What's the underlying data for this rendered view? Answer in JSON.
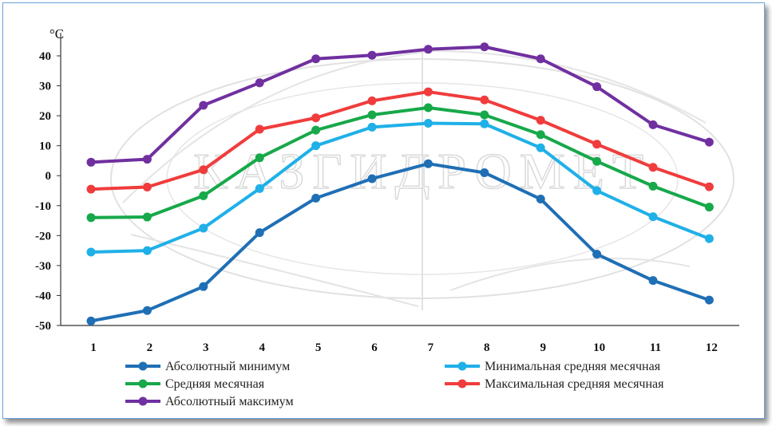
{
  "chart_data": {
    "type": "line",
    "ylabel": "°C",
    "ylim": [
      -50,
      45
    ],
    "yticks": [
      40,
      30,
      20,
      10,
      0,
      -10,
      -20,
      -30,
      -40,
      -50
    ],
    "x": [
      1,
      2,
      3,
      4,
      5,
      6,
      7,
      8,
      9,
      10,
      11,
      12
    ],
    "grid": false,
    "legend_position": "bottom",
    "watermark": "КАЗГИДРОМЕТ",
    "series": [
      {
        "name": "Абсолютный минимум",
        "color": "#1f6fb5",
        "values": [
          -48.5,
          -45,
          -37,
          -19,
          -7.5,
          -1,
          4,
          1,
          -7.8,
          -26.2,
          -35,
          -41.5
        ]
      },
      {
        "name": "Минимальная средняя месячная",
        "color": "#1fb0e8",
        "values": [
          -25.5,
          -25,
          -17.5,
          -4.3,
          10,
          16.2,
          17.5,
          17.3,
          9.3,
          -5,
          -13.7,
          -21
        ]
      },
      {
        "name": "Средняя месячная",
        "color": "#17a84a",
        "values": [
          -14,
          -13.8,
          -6.7,
          6,
          15.2,
          20.3,
          22.7,
          20.3,
          13.7,
          4.8,
          -3.5,
          -10.5
        ]
      },
      {
        "name": "Максимальная средняя месячная",
        "color": "#f03c3c",
        "values": [
          -4.5,
          -3.8,
          2,
          15.5,
          19.3,
          25,
          28,
          25.3,
          18.5,
          10.5,
          2.8,
          -3.7
        ]
      },
      {
        "name": "Абсолютный максимум",
        "color": "#7030a0",
        "values": [
          4.5,
          5.5,
          23.5,
          31,
          39,
          40.2,
          42.2,
          43,
          39,
          29.7,
          17,
          11.2
        ]
      }
    ]
  }
}
